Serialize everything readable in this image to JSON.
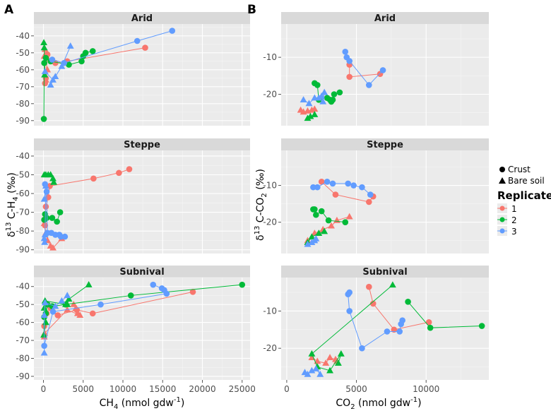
{
  "colors": {
    "rep1": "#F8766D",
    "rep2": "#00BA38",
    "rep3": "#619CFF",
    "panel_bg": "#EBEBEB",
    "strip_bg": "#D9D9D9",
    "grid": "#FFFFFF"
  },
  "labels": {
    "a_letter": "A",
    "b_letter": "B",
    "a_ylabel_pre": "δ",
    "a_ylabel_sup": "13",
    "a_ylabel_mid": " C-H",
    "a_ylabel_sub": "4",
    "a_ylabel_post": " (‰)",
    "a_xlabel_pre": "CH",
    "a_xlabel_sub": "4",
    "a_xlabel_post": " (nmol gdw",
    "a_xlabel_sup": "-1",
    "a_xlabel_end": ")",
    "b_ylabel_pre": "δ",
    "b_ylabel_sup": "13",
    "b_ylabel_mid": " C-CO",
    "b_ylabel_sub": "2",
    "b_ylabel_post": " (‰)",
    "b_xlabel_pre": "CO",
    "b_xlabel_sub": "2",
    "b_xlabel_post": " (nmol gdw",
    "b_xlabel_sup": "-1",
    "b_xlabel_end": ")"
  },
  "legend": {
    "shape_items": [
      "Crust",
      "Bare soil"
    ],
    "title": "Replicate",
    "items": [
      "1",
      "2",
      "3"
    ]
  },
  "chart_data": [
    {
      "type": "scatter",
      "panel": "A",
      "xlabel": "CH4 (nmol gdw-1)",
      "ylabel": "δ13 C-H4 (‰)",
      "xlim": [
        -1200,
        26000
      ],
      "x_ticks": [
        0,
        5000,
        10000,
        15000,
        20000,
        25000
      ],
      "facets": [
        {
          "title": "Arid",
          "ylim": [
            -93,
            -33
          ],
          "y_ticks": [
            -90,
            -80,
            -70,
            -60,
            -50,
            -40
          ],
          "series": [
            {
              "name": "1",
              "shape": "crust",
              "x": [
                12800,
                3000,
                1500,
                900,
                500,
                300,
                200
              ],
              "y": [
                -47,
                -55,
                -56,
                -55,
                -51,
                -65,
                -68
              ]
            },
            {
              "name": "1",
              "shape": "bare",
              "x": [
                200,
                100,
                300,
                500
              ],
              "y": [
                -48,
                -52,
                -66,
                -60
              ]
            },
            {
              "name": "2",
              "shape": "crust",
              "x": [
                6200,
                5300,
                5000,
                4800,
                3200,
                900,
                300,
                100,
                50
              ],
              "y": [
                -49,
                -50,
                -52,
                -55,
                -57,
                -55,
                -53,
                -56,
                -89
              ]
            },
            {
              "name": "2",
              "shape": "bare",
              "x": [
                50,
                100,
                150
              ],
              "y": [
                -44,
                -47,
                -63
              ]
            },
            {
              "name": "3",
              "shape": "crust",
              "x": [
                16200,
                11800,
                2600,
                1100
              ],
              "y": [
                -37,
                -43,
                -56,
                -54
              ]
            },
            {
              "name": "3",
              "shape": "bare",
              "x": [
                3400,
                2300,
                1500,
                900,
                1200,
                200
              ],
              "y": [
                -46,
                -58,
                -64,
                -69,
                -66,
                -61
              ]
            }
          ]
        },
        {
          "title": "Steppe",
          "ylim": [
            -92,
            -37
          ],
          "y_ticks": [
            -90,
            -80,
            -70,
            -60,
            -50,
            -40
          ],
          "series": [
            {
              "name": "1",
              "shape": "crust",
              "x": [
                10800,
                9500,
                6300,
                800,
                600,
                300,
                200
              ],
              "y": [
                -47,
                -49,
                -52,
                -56,
                -62,
                -67,
                -77
              ]
            },
            {
              "name": "1",
              "shape": "bare",
              "x": [
                100,
                300,
                500,
                900,
                1200,
                2300
              ],
              "y": [
                -76,
                -81,
                -85,
                -88,
                -89,
                -84
              ]
            },
            {
              "name": "2",
              "shape": "crust",
              "x": [
                2100,
                1700,
                1100,
                400,
                200,
                100
              ],
              "y": [
                -70,
                -75,
                -73,
                -73,
                -71,
                -74
              ]
            },
            {
              "name": "2",
              "shape": "bare",
              "x": [
                100,
                300,
                600,
                900,
                1200,
                1300
              ],
              "y": [
                -50,
                -50,
                -50,
                -50,
                -52,
                -54
              ]
            },
            {
              "name": "3",
              "shape": "crust",
              "x": [
                200,
                400,
                500,
                1000,
                1500,
                2000,
                2200,
                2700
              ],
              "y": [
                -55,
                -59,
                -81,
                -81,
                -82,
                -82,
                -83,
                -83
              ]
            },
            {
              "name": "3",
              "shape": "bare",
              "x": [
                100,
                300,
                200,
                100,
                150
              ],
              "y": [
                -63,
                -56,
                -82,
                -84,
                -86
              ]
            }
          ]
        },
        {
          "title": "Subnival",
          "ylim": [
            -92,
            -35
          ],
          "y_ticks": [
            -90,
            -80,
            -70,
            -60,
            -50,
            -40
          ],
          "series": [
            {
              "name": "1",
              "shape": "crust",
              "x": [
                18800,
                6200,
                4200,
                1800,
                900,
                400,
                100
              ],
              "y": [
                -43,
                -55,
                -53,
                -56,
                -52,
                -55,
                -62
              ]
            },
            {
              "name": "1",
              "shape": "bare",
              "x": [
                3800,
                4100,
                4300,
                4600,
                3000,
                150,
                100
              ],
              "y": [
                -50,
                -52,
                -55,
                -56,
                -53,
                -66,
                -68
              ]
            },
            {
              "name": "2",
              "shape": "crust",
              "x": [
                25000,
                11000,
                2800,
                1100,
                500,
                300,
                100
              ],
              "y": [
                -39,
                -45,
                -50,
                -51,
                -50,
                -55,
                -57
              ]
            },
            {
              "name": "2",
              "shape": "bare",
              "x": [
                5700,
                3200,
                3000,
                2800,
                200,
                100,
                50,
                300
              ],
              "y": [
                -39,
                -47,
                -50,
                -50,
                -48,
                -52,
                -67,
                -60
              ]
            },
            {
              "name": "3",
              "shape": "crust",
              "x": [
                13800,
                14900,
                15200,
                15500,
                7200,
                1200,
                100
              ],
              "y": [
                -39,
                -41,
                -42,
                -44,
                -50,
                -54,
                -73
              ]
            },
            {
              "name": "3",
              "shape": "bare",
              "x": [
                3000,
                2300,
                1500,
                200,
                100,
                100
              ],
              "y": [
                -45,
                -48,
                -51,
                -49,
                -56,
                -77
              ]
            }
          ]
        }
      ]
    },
    {
      "type": "scatter",
      "panel": "B",
      "xlabel": "CO2 (nmol gdw-1)",
      "ylabel": "δ13 C-CO2 (‰)",
      "xlim": [
        -400,
        14500
      ],
      "x_ticks": [
        0,
        5000,
        10000
      ],
      "facets": [
        {
          "title": "Arid",
          "ylim": [
            -28.5,
            -1
          ],
          "y_ticks": [
            -20,
            -10
          ],
          "series": [
            {
              "name": "1",
              "shape": "crust",
              "x": [
                6700,
                4500,
                4500
              ],
              "y": [
                -14.5,
                -15.3,
                -12
              ]
            },
            {
              "name": "1",
              "shape": "bare",
              "x": [
                1000,
                1200,
                1500,
                1800,
                2000
              ],
              "y": [
                -24.3,
                -24.8,
                -24.5,
                -24.3,
                -24
              ]
            },
            {
              "name": "2",
              "shape": "crust",
              "x": [
                3800,
                3400,
                3300,
                3200,
                3100,
                2900,
                2300,
                2200,
                2000
              ],
              "y": [
                -19.5,
                -20,
                -21.5,
                -22,
                -21.5,
                -21,
                -21.5,
                -17.5,
                -17
              ]
            },
            {
              "name": "2",
              "shape": "bare",
              "x": [
                1500,
                1700,
                2000
              ],
              "y": [
                -26.5,
                -26,
                -25.5
              ]
            },
            {
              "name": "3",
              "shape": "crust",
              "x": [
                4200,
                4300,
                4500,
                5900,
                6900
              ],
              "y": [
                -8.5,
                -10,
                -11,
                -17.5,
                -13.5
              ]
            },
            {
              "name": "3",
              "shape": "bare",
              "x": [
                1200,
                1600,
                2000,
                2300,
                2700,
                2600,
                2500
              ],
              "y": [
                -21.5,
                -22.5,
                -21,
                -21,
                -19.5,
                -22,
                -20.5
              ]
            }
          ]
        },
        {
          "title": "Steppe",
          "ylim": [
            -28.5,
            -0.5
          ],
          "y_ticks": [
            -20,
            -10
          ],
          "series": [
            {
              "name": "1",
              "shape": "crust",
              "x": [
                6200,
                5900,
                3500,
                2500
              ],
              "y": [
                -13,
                -14.5,
                -12.5,
                -9
              ]
            },
            {
              "name": "1",
              "shape": "bare",
              "x": [
                1500,
                2000,
                2600,
                3200,
                3600,
                4500
              ],
              "y": [
                -25,
                -23,
                -22,
                -21,
                -19.5,
                -18.5
              ]
            },
            {
              "name": "2",
              "shape": "crust",
              "x": [
                1900,
                2000,
                2100,
                2500,
                3000,
                4200
              ],
              "y": [
                -16.5,
                -16.5,
                -18,
                -17,
                -19.5,
                -20
              ]
            },
            {
              "name": "2",
              "shape": "bare",
              "x": [
                1500,
                1800,
                2300,
                2700
              ],
              "y": [
                -25.5,
                -24,
                -23,
                -22.5
              ]
            },
            {
              "name": "3",
              "shape": "crust",
              "x": [
                1900,
                2200,
                2900,
                3300,
                4400,
                4800,
                5400,
                6000
              ],
              "y": [
                -10.5,
                -10.5,
                -9,
                -9.5,
                -9.5,
                -10,
                -10.5,
                -12.5
              ]
            },
            {
              "name": "3",
              "shape": "bare",
              "x": [
                1500,
                1800,
                2000,
                2100
              ],
              "y": [
                -26,
                -25.5,
                -25,
                -24.5
              ]
            }
          ]
        },
        {
          "title": "Subnival",
          "ylim": [
            -28.5,
            -1
          ],
          "y_ticks": [
            -20,
            -10
          ],
          "series": [
            {
              "name": "1",
              "shape": "crust",
              "x": [
                10200,
                7700,
                6200,
                5900
              ],
              "y": [
                -13,
                -15,
                -8,
                -3.5
              ]
            },
            {
              "name": "1",
              "shape": "bare",
              "x": [
                1800,
                2200,
                2800,
                3100,
                3500,
                3600
              ],
              "y": [
                -22.5,
                -23.5,
                -24,
                -22.5,
                -23,
                -23.5
              ]
            },
            {
              "name": "2",
              "shape": "crust",
              "x": [
                14000,
                10300,
                8700
              ],
              "y": [
                -14,
                -14.5,
                -7.5
              ]
            },
            {
              "name": "2",
              "shape": "bare",
              "x": [
                7600,
                1800,
                2200,
                3100,
                3900,
                3700
              ],
              "y": [
                -3,
                -21.5,
                -25,
                -26,
                -21.5,
                -24
              ]
            },
            {
              "name": "3",
              "shape": "crust",
              "x": [
                8300,
                8200,
                8100,
                7200,
                5400,
                4500,
                4400,
                4500
              ],
              "y": [
                -12.5,
                -13.5,
                -15.5,
                -15.5,
                -20,
                -10,
                -5.5,
                -5
              ]
            },
            {
              "name": "3",
              "shape": "bare",
              "x": [
                1300,
                1500,
                1800,
                2100,
                2400
              ],
              "y": [
                -26.5,
                -27,
                -26,
                -25.5,
                -27
              ]
            }
          ]
        }
      ]
    }
  ]
}
